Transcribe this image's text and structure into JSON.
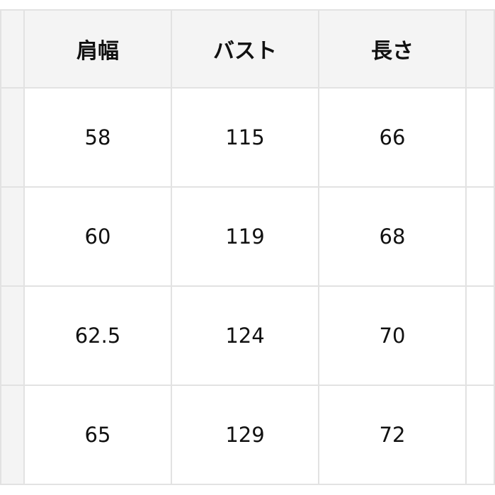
{
  "table": {
    "headers": [
      "肩幅",
      "バスト",
      "長さ"
    ],
    "rows": [
      [
        "58",
        "115",
        "66"
      ],
      [
        "60",
        "119",
        "68"
      ],
      [
        "62.5",
        "124",
        "70"
      ],
      [
        "65",
        "129",
        "72"
      ]
    ]
  }
}
